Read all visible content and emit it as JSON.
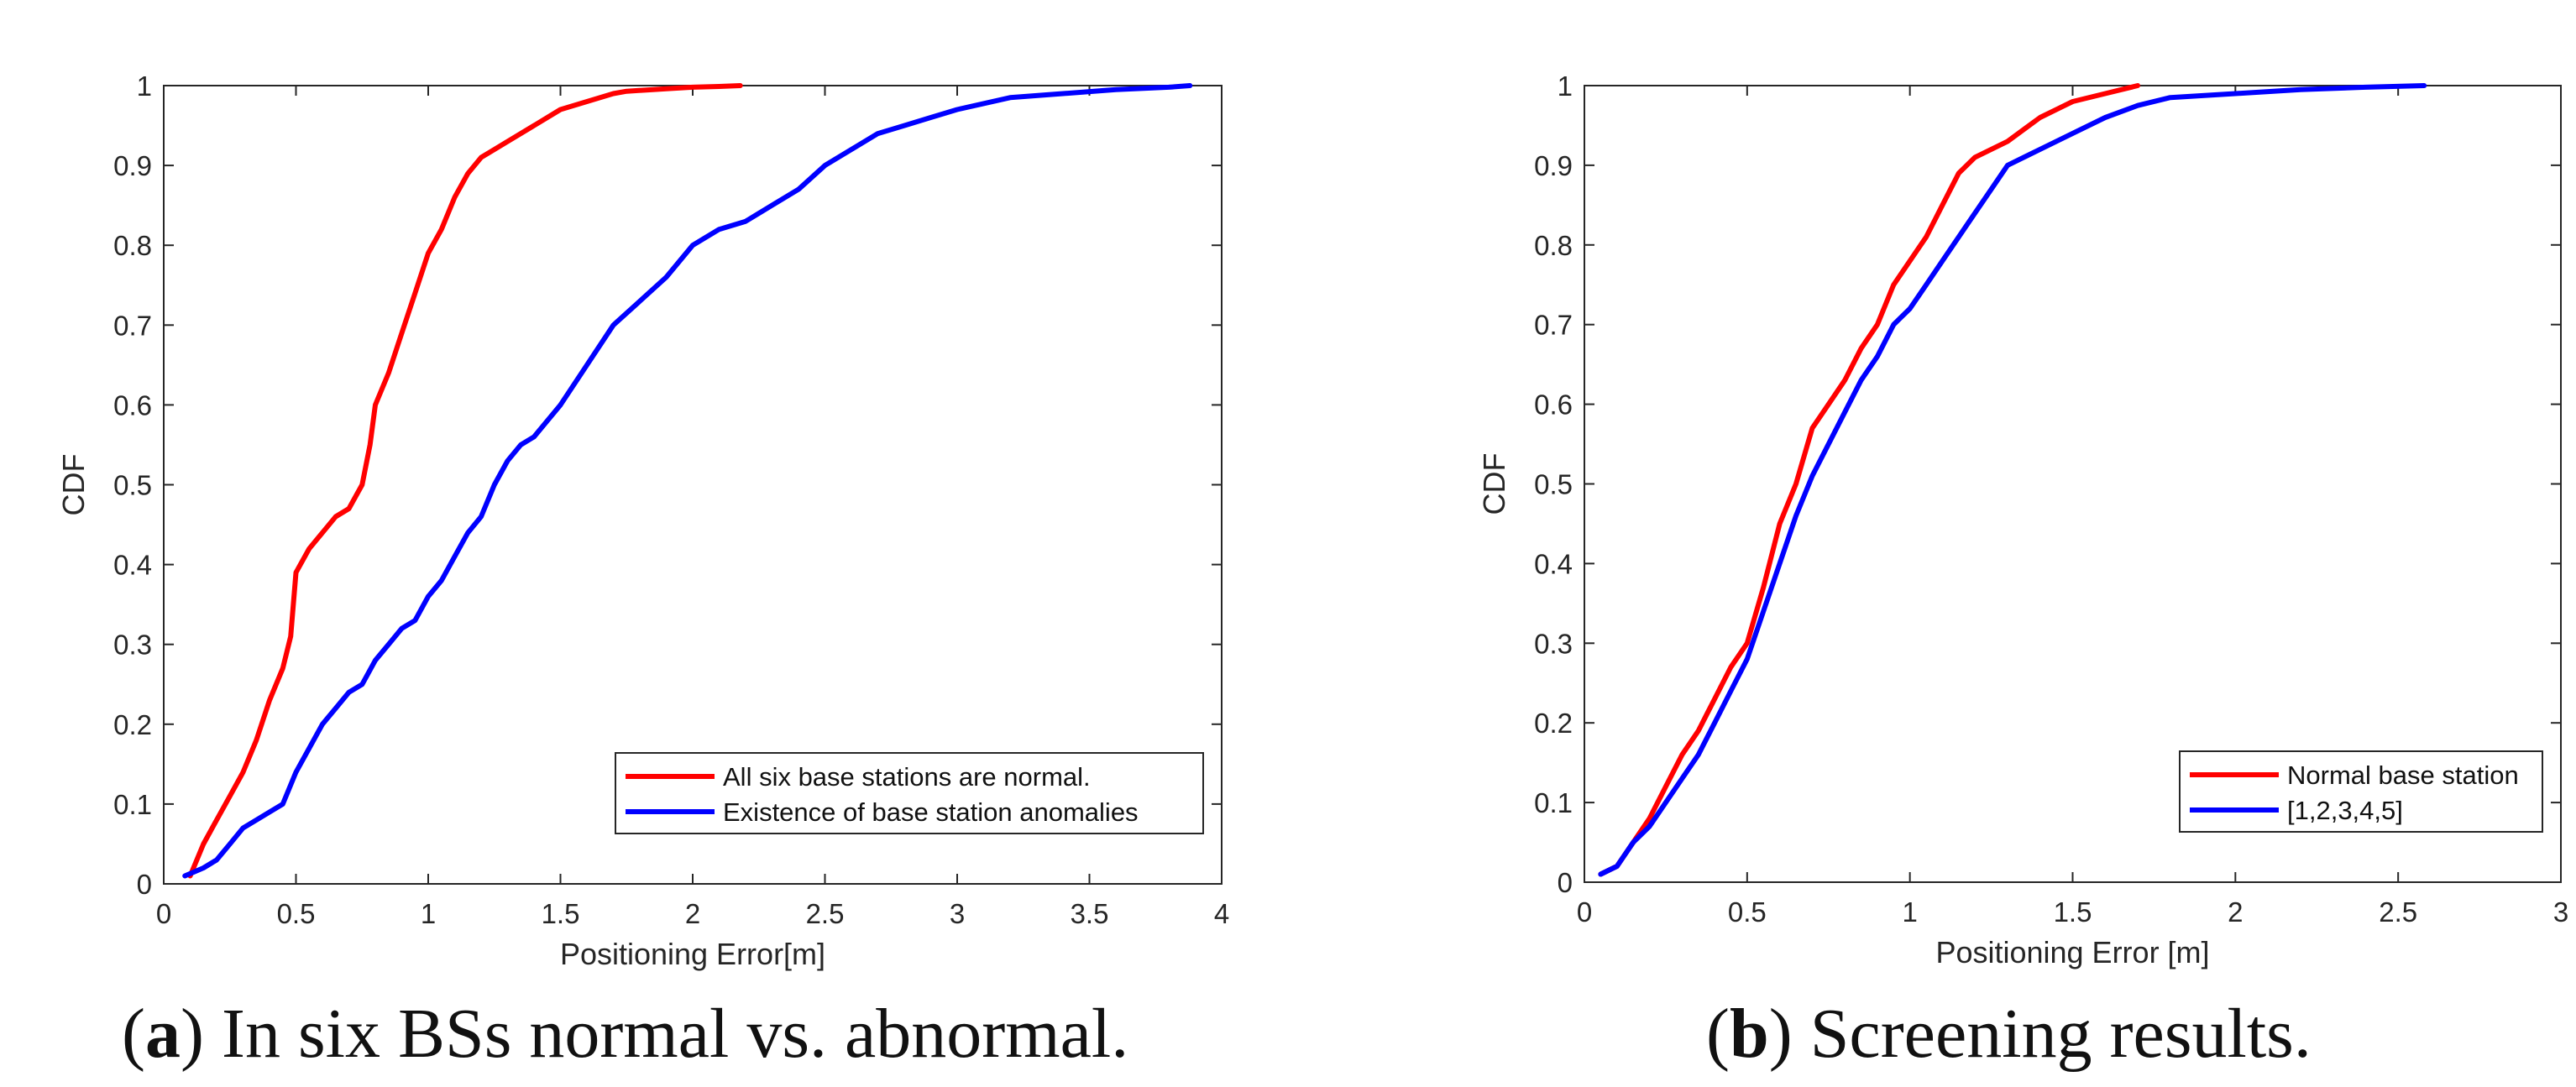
{
  "chart_data": [
    {
      "type": "line",
      "ylabel": "CDF",
      "xlabel": "Positioning Error[m]",
      "xlim": [
        0,
        4
      ],
      "ylim": [
        0,
        1
      ],
      "xticks": [
        "0",
        "0.5",
        "1",
        "1.5",
        "2",
        "2.5",
        "3",
        "3.5",
        "4"
      ],
      "yticks": [
        "0",
        "0.1",
        "0.2",
        "0.3",
        "0.4",
        "0.5",
        "0.6",
        "0.7",
        "0.8",
        "0.9",
        "1"
      ],
      "grid": false,
      "legend_position": "bottom-right",
      "caption_letter": "a",
      "caption_text": "In six BSs normal vs. abnormal.",
      "series": [
        {
          "name": "All six base stations are normal.",
          "color": "#ff0000",
          "x": [
            0.1,
            0.15,
            0.2,
            0.25,
            0.3,
            0.35,
            0.4,
            0.45,
            0.48,
            0.5,
            0.55,
            0.6,
            0.65,
            0.7,
            0.75,
            0.78,
            0.8,
            0.85,
            0.9,
            0.95,
            1.0,
            1.05,
            1.1,
            1.15,
            1.2,
            1.25,
            1.3,
            1.4,
            1.5,
            1.6,
            1.7,
            1.75,
            1.9,
            2.0,
            2.1,
            2.18
          ],
          "y": [
            0.01,
            0.05,
            0.08,
            0.11,
            0.14,
            0.18,
            0.23,
            0.27,
            0.31,
            0.39,
            0.42,
            0.44,
            0.46,
            0.47,
            0.5,
            0.55,
            0.6,
            0.64,
            0.69,
            0.74,
            0.79,
            0.82,
            0.86,
            0.89,
            0.91,
            0.92,
            0.93,
            0.95,
            0.97,
            0.98,
            0.99,
            0.993,
            0.996,
            0.998,
            0.999,
            1.0
          ]
        },
        {
          "name": "Existence of base station anomalies",
          "color": "#0000ff",
          "x": [
            0.08,
            0.15,
            0.2,
            0.25,
            0.3,
            0.35,
            0.4,
            0.45,
            0.5,
            0.55,
            0.6,
            0.65,
            0.7,
            0.75,
            0.8,
            0.85,
            0.9,
            0.95,
            1.0,
            1.05,
            1.1,
            1.15,
            1.2,
            1.25,
            1.3,
            1.35,
            1.4,
            1.5,
            1.6,
            1.7,
            1.8,
            1.9,
            2.0,
            2.1,
            2.2,
            2.3,
            2.4,
            2.5,
            2.6,
            2.7,
            2.8,
            2.9,
            3.0,
            3.2,
            3.4,
            3.6,
            3.8,
            3.88
          ],
          "y": [
            0.01,
            0.02,
            0.03,
            0.05,
            0.07,
            0.08,
            0.09,
            0.1,
            0.14,
            0.17,
            0.2,
            0.22,
            0.24,
            0.25,
            0.28,
            0.3,
            0.32,
            0.33,
            0.36,
            0.38,
            0.41,
            0.44,
            0.46,
            0.5,
            0.53,
            0.55,
            0.56,
            0.6,
            0.65,
            0.7,
            0.73,
            0.76,
            0.8,
            0.82,
            0.83,
            0.85,
            0.87,
            0.9,
            0.92,
            0.94,
            0.95,
            0.96,
            0.97,
            0.985,
            0.99,
            0.995,
            0.998,
            1.0
          ]
        }
      ]
    },
    {
      "type": "line",
      "ylabel": "CDF",
      "xlabel": "Positioning Error [m]",
      "xlim": [
        0,
        3
      ],
      "ylim": [
        0,
        1
      ],
      "xticks": [
        "0",
        "0.5",
        "1",
        "1.5",
        "2",
        "2.5",
        "3"
      ],
      "yticks": [
        "0",
        "0.1",
        "0.2",
        "0.3",
        "0.4",
        "0.5",
        "0.6",
        "0.7",
        "0.8",
        "0.9",
        "1"
      ],
      "grid": false,
      "legend_position": "bottom-right",
      "caption_letter": "b",
      "caption_text": "Screening results.",
      "series": [
        {
          "name": "Normal base station",
          "color": "#ff0000",
          "x": [
            0.05,
            0.1,
            0.15,
            0.2,
            0.25,
            0.3,
            0.35,
            0.4,
            0.45,
            0.5,
            0.55,
            0.6,
            0.65,
            0.7,
            0.75,
            0.8,
            0.85,
            0.9,
            0.95,
            1.0,
            1.05,
            1.1,
            1.15,
            1.2,
            1.3,
            1.4,
            1.5,
            1.6,
            1.7
          ],
          "y": [
            0.01,
            0.02,
            0.05,
            0.08,
            0.12,
            0.16,
            0.19,
            0.23,
            0.27,
            0.3,
            0.37,
            0.45,
            0.5,
            0.57,
            0.6,
            0.63,
            0.67,
            0.7,
            0.75,
            0.78,
            0.81,
            0.85,
            0.89,
            0.91,
            0.93,
            0.96,
            0.98,
            0.99,
            1.0
          ]
        },
        {
          "name": "[1,2,3,4,5]",
          "color": "#0000ff",
          "x": [
            0.05,
            0.1,
            0.15,
            0.2,
            0.25,
            0.3,
            0.35,
            0.4,
            0.45,
            0.5,
            0.55,
            0.6,
            0.65,
            0.7,
            0.75,
            0.8,
            0.85,
            0.9,
            0.95,
            1.0,
            1.05,
            1.1,
            1.15,
            1.2,
            1.25,
            1.3,
            1.4,
            1.5,
            1.6,
            1.7,
            1.8,
            2.0,
            2.2,
            2.4,
            2.58
          ],
          "y": [
            0.01,
            0.02,
            0.05,
            0.07,
            0.1,
            0.13,
            0.16,
            0.2,
            0.24,
            0.28,
            0.34,
            0.4,
            0.46,
            0.51,
            0.55,
            0.59,
            0.63,
            0.66,
            0.7,
            0.72,
            0.75,
            0.78,
            0.81,
            0.84,
            0.87,
            0.9,
            0.92,
            0.94,
            0.96,
            0.975,
            0.985,
            0.99,
            0.995,
            0.998,
            1.0
          ]
        }
      ]
    }
  ]
}
